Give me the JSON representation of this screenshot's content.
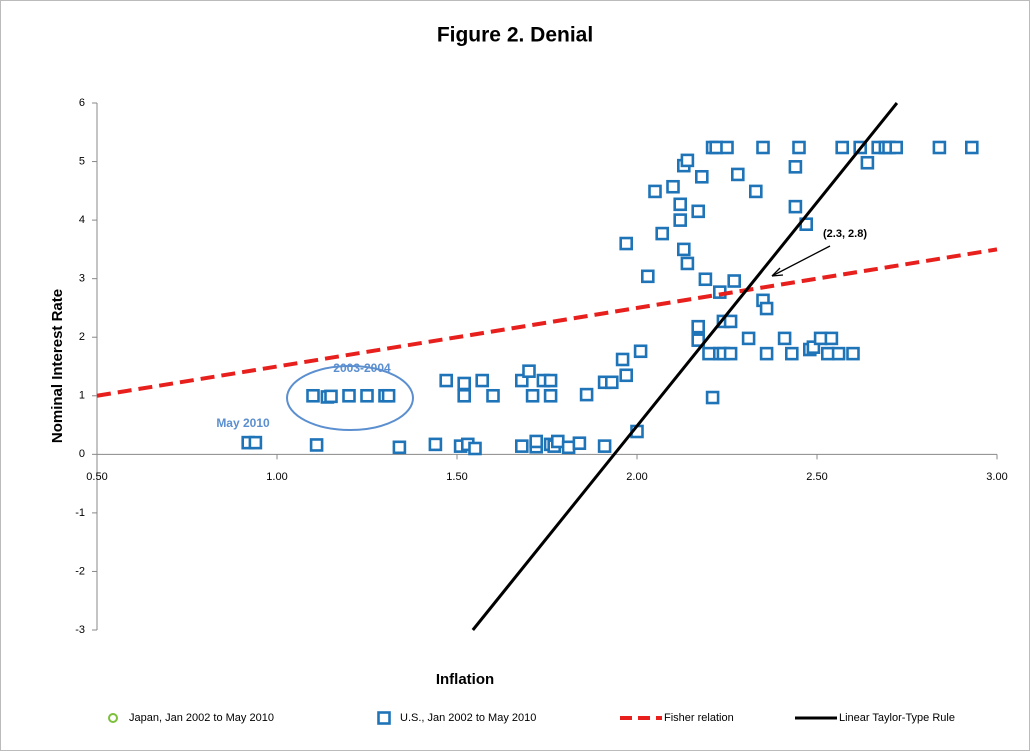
{
  "chart_data": {
    "type": "scatter",
    "title": "Figure 2.  Denial",
    "x_label": "Inflation",
    "y_label": "Nominal Interest Rate",
    "xlim": [
      0.5,
      3.0
    ],
    "ylim": [
      -3,
      6
    ],
    "xticks": [
      {
        "value": 0.5,
        "label": "0.50"
      },
      {
        "value": 1.0,
        "label": "1.00"
      },
      {
        "value": 1.5,
        "label": "1.50"
      },
      {
        "value": 2.0,
        "label": "2.00"
      },
      {
        "value": 2.5,
        "label": "2.50"
      },
      {
        "value": 3.0,
        "label": "3.00"
      }
    ],
    "yticks": [
      6,
      5,
      4,
      3,
      2,
      1,
      0,
      -1,
      -2,
      -3
    ],
    "grid": false,
    "legend": "bottom",
    "series": [
      {
        "name": "Japan, Jan 2002 to May 2010",
        "type": "scatter",
        "marker": "circle",
        "color": "#7cbf3a",
        "x": [],
        "values": []
      },
      {
        "name": "U.S., Jan 2002 to May 2010",
        "type": "scatter",
        "marker": "square",
        "color": "#1f74b8",
        "x": [
          0.92,
          0.94,
          1.11,
          1.1,
          1.14,
          1.15,
          1.2,
          1.25,
          1.3,
          1.31,
          1.34,
          1.44,
          1.47,
          1.51,
          1.53,
          1.55,
          1.52,
          1.52,
          1.57,
          1.6,
          1.68,
          1.68,
          1.7,
          1.71,
          1.72,
          1.72,
          1.74,
          1.76,
          1.76,
          1.76,
          1.77,
          1.78,
          1.81,
          1.84,
          1.86,
          1.91,
          1.91,
          1.93,
          1.96,
          1.97,
          1.97,
          2.0,
          2.01,
          2.03,
          2.05,
          2.07,
          2.1,
          2.12,
          2.12,
          2.13,
          2.14,
          2.13,
          2.14,
          2.17,
          2.17,
          2.17,
          2.18,
          2.19,
          2.2,
          2.21,
          2.21,
          2.22,
          2.25,
          2.23,
          2.24,
          2.26,
          2.23,
          2.24,
          2.26,
          2.27,
          2.28,
          2.31,
          2.33,
          2.35,
          2.35,
          2.36,
          2.36,
          2.41,
          2.43,
          2.44,
          2.44,
          2.45,
          2.47,
          2.48,
          2.49,
          2.51,
          2.53,
          2.54,
          2.56,
          2.57,
          2.6,
          2.62,
          2.64,
          2.67,
          2.69,
          2.7,
          2.72,
          2.84,
          2.93
        ],
        "values": [
          0.2,
          0.2,
          0.16,
          1.0,
          0.98,
          0.99,
          1.0,
          1.0,
          1.0,
          1.0,
          0.12,
          0.17,
          1.26,
          0.14,
          0.17,
          0.1,
          1.21,
          1.0,
          1.26,
          1.0,
          0.14,
          1.26,
          1.42,
          1.0,
          0.13,
          0.22,
          1.26,
          1.26,
          1.0,
          0.17,
          0.14,
          0.22,
          0.12,
          0.19,
          1.02,
          0.14,
          1.23,
          1.23,
          1.62,
          1.35,
          3.6,
          0.39,
          1.76,
          3.04,
          4.49,
          3.77,
          4.57,
          4.27,
          4.0,
          3.5,
          3.26,
          4.93,
          5.02,
          2.18,
          1.95,
          4.15,
          4.74,
          2.99,
          1.72,
          0.97,
          5.24,
          5.24,
          5.24,
          1.72,
          1.72,
          1.72,
          2.77,
          2.27,
          2.27,
          2.96,
          4.78,
          1.98,
          4.49,
          5.24,
          2.63,
          2.49,
          1.72,
          1.98,
          1.72,
          4.91,
          4.23,
          5.24,
          3.93,
          1.79,
          1.83,
          1.98,
          1.72,
          1.98,
          1.72,
          5.24,
          1.72,
          5.24,
          4.98,
          5.24,
          5.24,
          5.24,
          5.24,
          5.24,
          5.24
        ]
      },
      {
        "name": "Fisher relation",
        "type": "line",
        "dash": true,
        "color": "#e8201d",
        "x": [
          0.5,
          3.0
        ],
        "values": [
          1,
          3.5
        ]
      },
      {
        "name": "Linear Taylor-Type Rule",
        "type": "line",
        "dash": false,
        "color": "#000000",
        "x": [
          1.544,
          2.722
        ],
        "values": [
          -3,
          6
        ]
      }
    ],
    "annotations": [
      "(2.3, 2.8)",
      "2003-2004",
      "May 2010"
    ]
  }
}
